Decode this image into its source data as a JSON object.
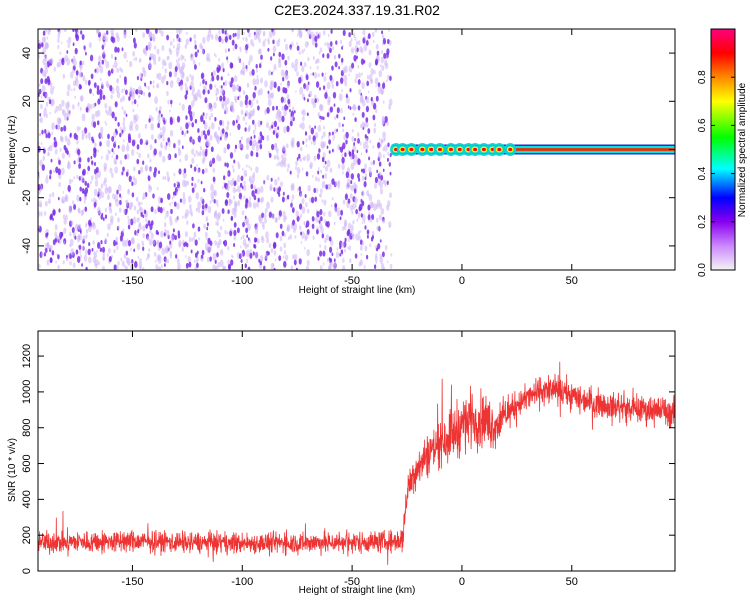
{
  "title": "C2E3.2024.337.19.31.R02",
  "colors": {
    "snr_line": "#ee3333",
    "speckle": "#7b2ee6",
    "speckle_light": "#cdb3f5",
    "axis": "#000000"
  },
  "chart_data": [
    {
      "type": "heatmap",
      "title": "C2E3.2024.337.19.31.R02",
      "xlabel": "Height of straight line (km)",
      "ylabel": "Frequency (Hz)",
      "xlim": [
        -193,
        97
      ],
      "ylim": [
        -50,
        50
      ],
      "x_ticks": [
        -150,
        -100,
        -50,
        0,
        50
      ],
      "y_ticks": [
        -40,
        -20,
        0,
        20,
        40
      ],
      "x_tick_labels": [
        "-150",
        "-100",
        "-50",
        "0",
        "50"
      ],
      "y_tick_labels": [
        "-40",
        "-20",
        "0",
        "20",
        "40"
      ],
      "noise_region_x": [
        -193,
        -32
      ],
      "signal_line": {
        "x_start": -32,
        "x_end": 97,
        "frequency": 0
      },
      "signal_peaks_x": [
        -30,
        -27,
        -23,
        -18,
        -14,
        -10,
        -5,
        -1,
        3,
        6,
        10,
        14,
        17,
        22
      ],
      "colorbar": {
        "label": "Normalized spectral amplitude",
        "range": [
          0,
          1
        ],
        "ticks": [
          0,
          0.2,
          0.4,
          0.6,
          0.8
        ],
        "tick_labels": [
          "0.0",
          "0.2",
          "0.4",
          "0.6",
          "0.8"
        ],
        "colormap": [
          "#f4f4f4",
          "#cc88ff",
          "#8800ee",
          "#0000ff",
          "#00ffff",
          "#00ff00",
          "#ffff00",
          "#ff8800",
          "#ff0000",
          "#ff0080"
        ]
      }
    },
    {
      "type": "line",
      "xlabel": "Height of straight line (km)",
      "ylabel": "SNR (10 * v/v)",
      "xlim": [
        -193,
        97
      ],
      "ylim": [
        0,
        1340
      ],
      "x_ticks": [
        -150,
        -100,
        -50,
        0,
        50
      ],
      "y_ticks": [
        0,
        200,
        400,
        600,
        800,
        1000,
        1200
      ],
      "x_tick_labels": [
        "-150",
        "-100",
        "-50",
        "0",
        "50"
      ],
      "y_tick_labels": [
        "0",
        "200",
        "400",
        "600",
        "800",
        "1000",
        "1200"
      ],
      "series_envelope": {
        "x": [
          -193,
          -150,
          -100,
          -60,
          -30,
          -27,
          -25,
          -22,
          -18,
          -15,
          -10,
          -5,
          0,
          5,
          10,
          15,
          20,
          25,
          30,
          35,
          40,
          45,
          50,
          60,
          70,
          80,
          90,
          97
        ],
        "mean": [
          160,
          165,
          155,
          160,
          165,
          180,
          430,
          560,
          610,
          660,
          720,
          760,
          820,
          860,
          840,
          810,
          870,
          930,
          970,
          1000,
          1010,
          1000,
          980,
          940,
          920,
          900,
          900,
          880
        ],
        "spread": [
          90,
          90,
          85,
          90,
          90,
          120,
          140,
          160,
          170,
          180,
          200,
          220,
          240,
          230,
          230,
          190,
          130,
          110,
          110,
          120,
          130,
          120,
          120,
          110,
          110,
          110,
          120,
          130
        ]
      }
    }
  ]
}
